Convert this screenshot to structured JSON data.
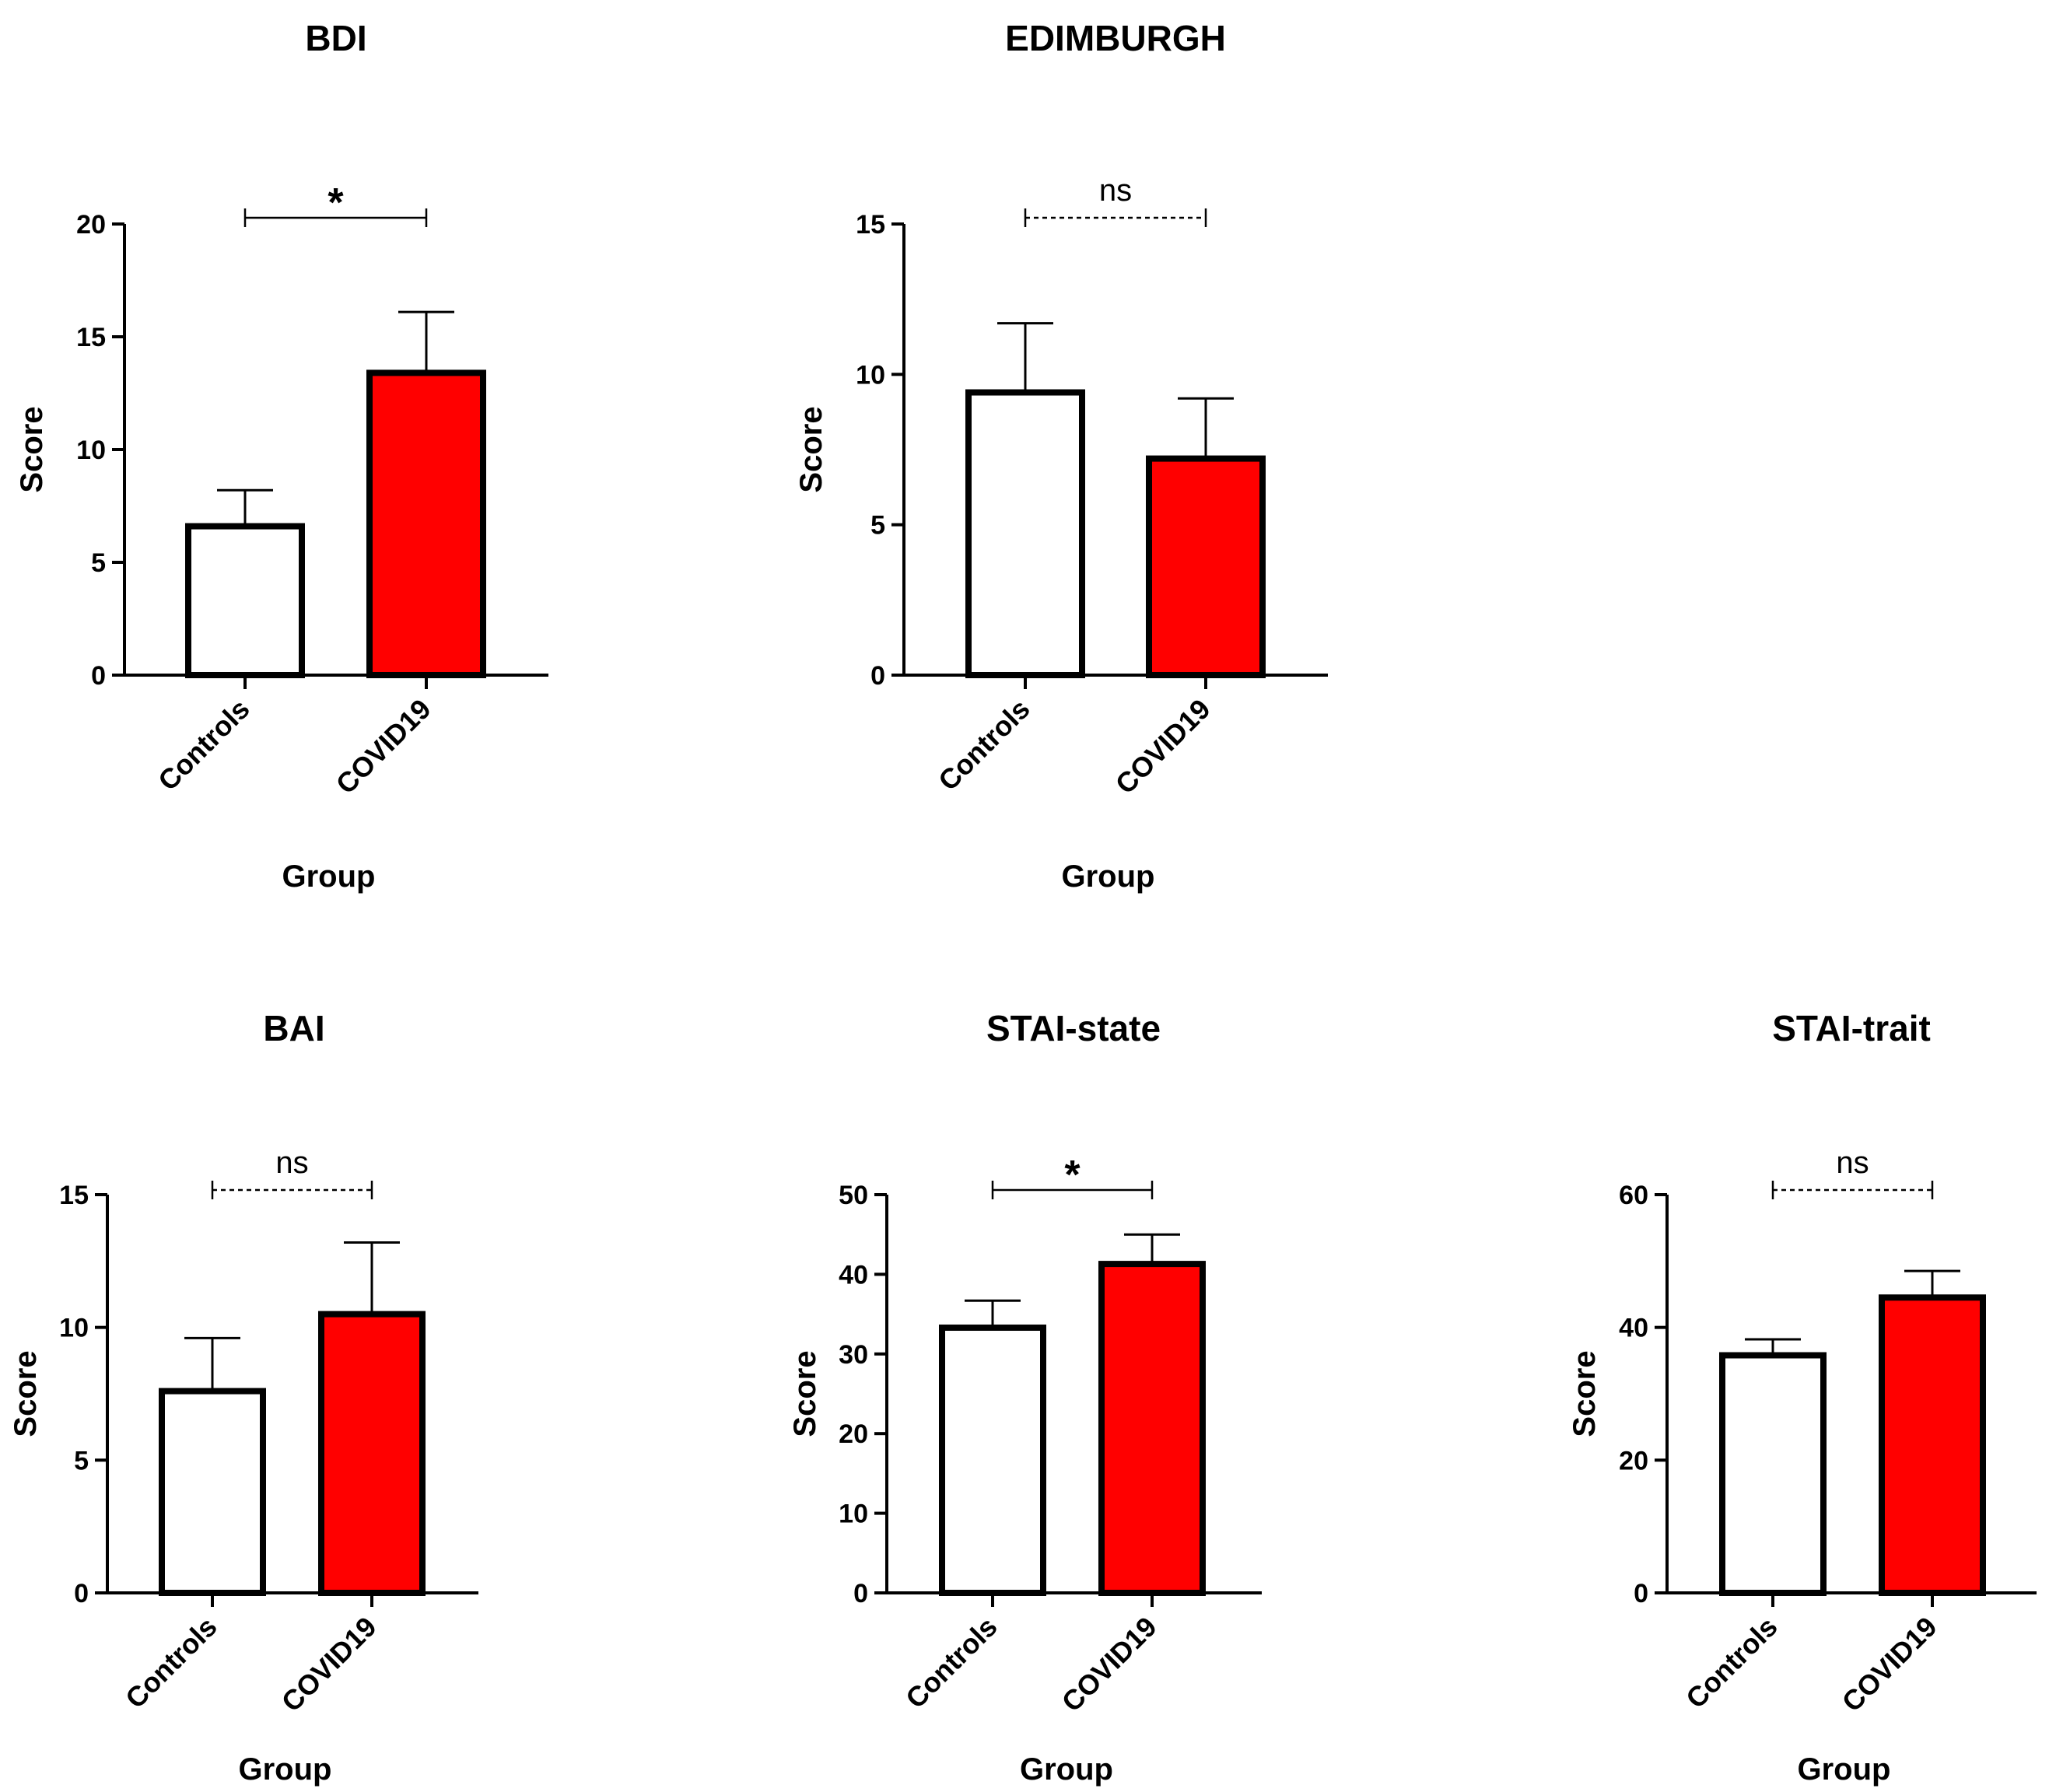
{
  "colors": {
    "controls": "#ffffff",
    "covid19": "#ff0000",
    "stroke": "#000000"
  },
  "chart_data": [
    {
      "type": "bar",
      "title": "BDI",
      "xlabel": "Group",
      "ylabel": "Score",
      "categories": [
        "Controls",
        "COVID19"
      ],
      "values": [
        6.6,
        13.4
      ],
      "error_upper": [
        8.2,
        16.1
      ],
      "ylim": [
        0,
        20
      ],
      "yticks": [
        0,
        5,
        10,
        15,
        20
      ],
      "significance": "*",
      "significance_style": "solid"
    },
    {
      "type": "bar",
      "title": "EDIMBURGH",
      "xlabel": "Group",
      "ylabel": "Score",
      "categories": [
        "Controls",
        "COVID19"
      ],
      "values": [
        9.4,
        7.2
      ],
      "error_upper": [
        11.7,
        9.2
      ],
      "ylim": [
        0,
        15
      ],
      "yticks": [
        0,
        5,
        10,
        15
      ],
      "significance": "ns",
      "significance_style": "dashed"
    },
    {
      "type": "bar",
      "title": "BAI",
      "xlabel": "Group",
      "ylabel": "Score",
      "categories": [
        "Controls",
        "COVID19"
      ],
      "values": [
        7.6,
        10.5
      ],
      "error_upper": [
        9.6,
        13.2
      ],
      "ylim": [
        0,
        15
      ],
      "yticks": [
        0,
        5,
        10,
        15
      ],
      "significance": "ns",
      "significance_style": "dashed"
    },
    {
      "type": "bar",
      "title": "STAI-state",
      "xlabel": "Group",
      "ylabel": "Score",
      "categories": [
        "Controls",
        "COVID19"
      ],
      "values": [
        33.3,
        41.3
      ],
      "error_upper": [
        36.7,
        45.0
      ],
      "ylim": [
        0,
        50
      ],
      "yticks": [
        0,
        10,
        20,
        30,
        40,
        50
      ],
      "significance": "*",
      "significance_style": "solid"
    },
    {
      "type": "bar",
      "title": "STAI-trait",
      "xlabel": "Group",
      "ylabel": "Score",
      "categories": [
        "Controls",
        "COVID19"
      ],
      "values": [
        35.8,
        44.5
      ],
      "error_upper": [
        38.2,
        48.5
      ],
      "ylim": [
        0,
        60
      ],
      "yticks": [
        0,
        20,
        40,
        60
      ],
      "significance": "ns",
      "significance_style": "dashed"
    }
  ]
}
